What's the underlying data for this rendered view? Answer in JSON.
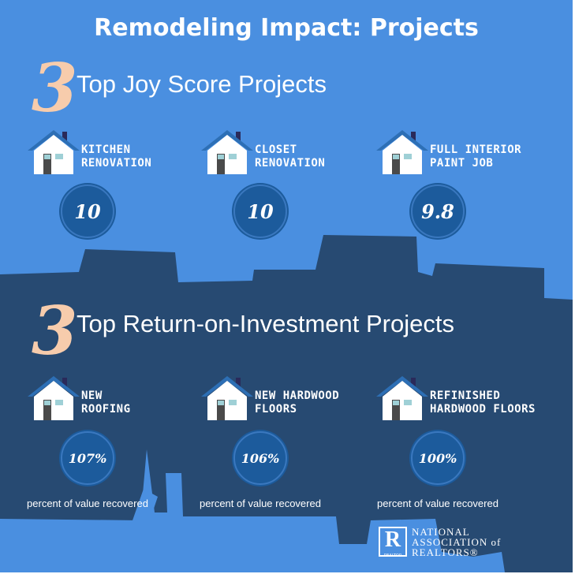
{
  "title": "Remodeling Impact: Projects",
  "colors": {
    "background": "#4a8fe0",
    "dark_band": "#274a72",
    "accent_number": "#f7ccac",
    "circle": "#1c5b9c"
  },
  "joy": {
    "number": "3",
    "heading": "Top Joy Score Projects",
    "items": [
      {
        "icon": "house-icon",
        "line1": "Kitchen",
        "line2": "Renovation",
        "score": "10"
      },
      {
        "icon": "house-icon",
        "line1": "Closet",
        "line2": "Renovation",
        "score": "10"
      },
      {
        "icon": "house-icon",
        "line1": "Full Interior",
        "line2": "Paint Job",
        "score": "9.8"
      }
    ]
  },
  "roi": {
    "number": "3",
    "heading": "Top Return-on-Investment Projects",
    "items": [
      {
        "icon": "house-icon",
        "line1": "New",
        "line2": "Roofing",
        "value": "107%",
        "caption": "percent of value recovered"
      },
      {
        "icon": "house-icon",
        "line1": "New Hardwood",
        "line2": "Floors",
        "value": "106%",
        "caption": "percent of value recovered"
      },
      {
        "icon": "house-icon",
        "line1": "Refinished",
        "line2": "Hardwood Floors",
        "value": "100%",
        "caption": "percent of value recovered"
      }
    ]
  },
  "logo": {
    "mark": "R",
    "mark_caption": "REALTOR",
    "line1": "NATIONAL",
    "line2": "ASSOCIATION of",
    "line3": "REALTORS®"
  }
}
